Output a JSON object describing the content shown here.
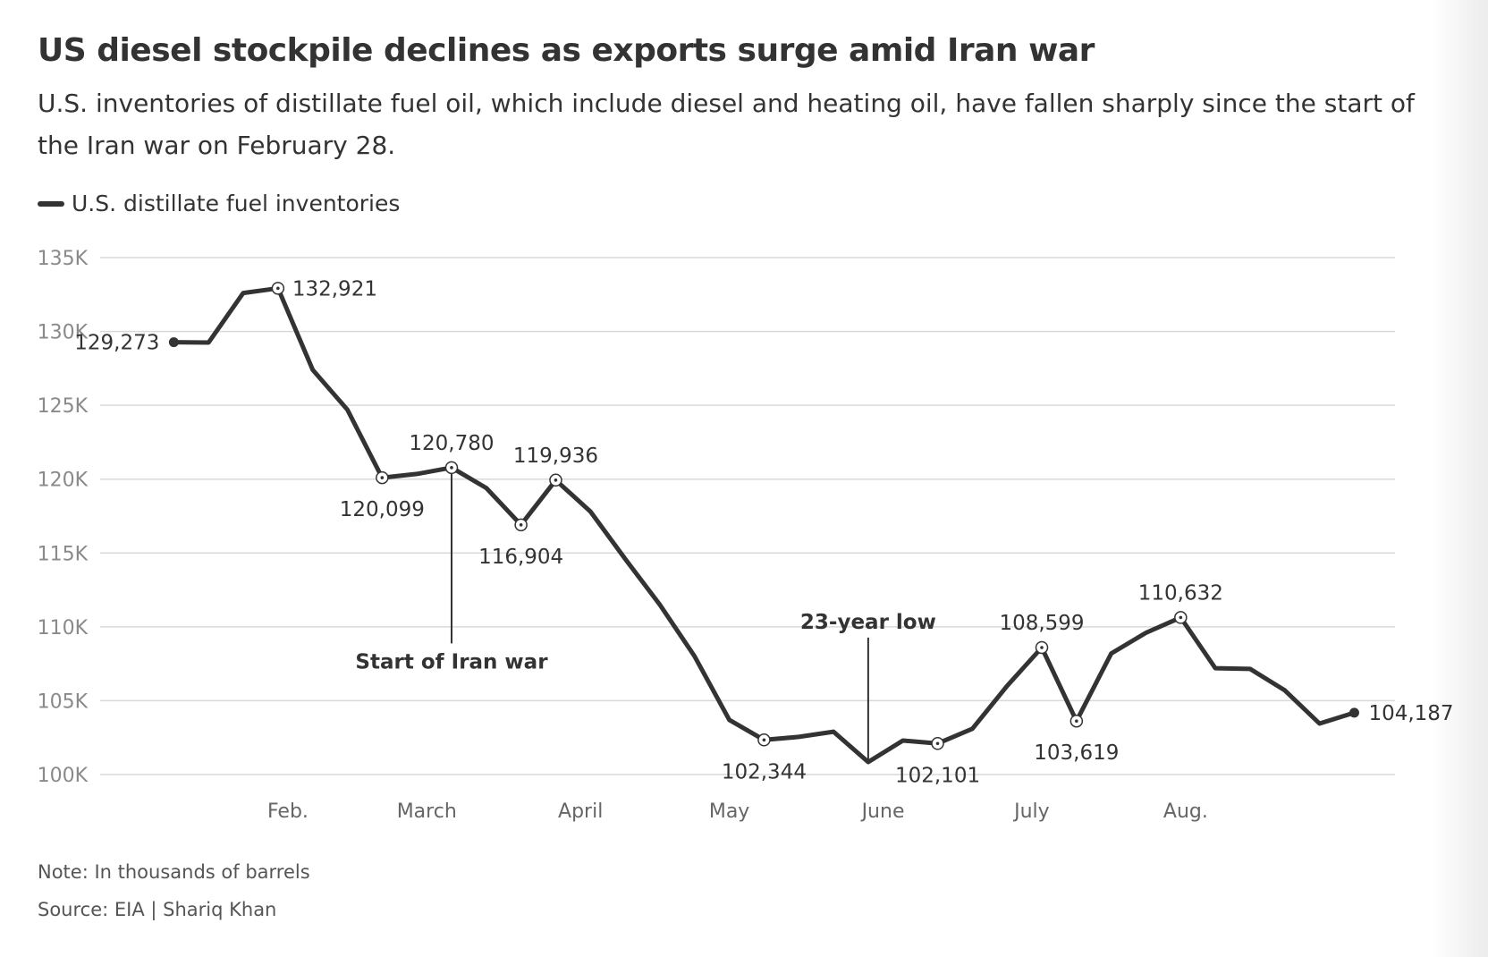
{
  "title": "US diesel stockpile declines as exports surge amid Iran war",
  "subtitle": "U.S. inventories of distillate fuel oil, which include diesel and heating oil, have fallen sharply since the start of the Iran war on February 28.",
  "note": "Note: In thousands of barrels",
  "source": "Source: EIA | Shariq Khan",
  "colors": {
    "line": "#333333",
    "grid": "#d9d9d9",
    "tick": "#8a8a8a",
    "text": "#333333"
  },
  "chart_data": {
    "type": "line",
    "legend_position": "top-left",
    "grid": true,
    "ylim": [
      100000,
      135000
    ],
    "y_ticks": [
      {
        "value": 135000,
        "label": "135K"
      },
      {
        "value": 130000,
        "label": "130K"
      },
      {
        "value": 125000,
        "label": "125K"
      },
      {
        "value": 120000,
        "label": "120K"
      },
      {
        "value": 115000,
        "label": "115K"
      },
      {
        "value": 110000,
        "label": "110K"
      },
      {
        "value": 105000,
        "label": "105K"
      },
      {
        "value": 100000,
        "label": "100K"
      }
    ],
    "xlim": [
      "2026-01-01",
      "2026-09-05"
    ],
    "x_ticks": [
      {
        "date": "2026-02-01",
        "label": "Feb."
      },
      {
        "date": "2026-03-01",
        "label": "March"
      },
      {
        "date": "2026-04-01",
        "label": "April"
      },
      {
        "date": "2026-05-01",
        "label": "May"
      },
      {
        "date": "2026-06-01",
        "label": "June"
      },
      {
        "date": "2026-07-01",
        "label": "July"
      },
      {
        "date": "2026-08-01",
        "label": "Aug."
      }
    ],
    "series": [
      {
        "name": "U.S. distillate fuel inventories",
        "points": [
          {
            "x": "2026-01-09",
            "y": 129273,
            "label": "129,273",
            "marker": "filled",
            "label_side": "left"
          },
          {
            "x": "2026-01-16",
            "y": 129250
          },
          {
            "x": "2026-01-23",
            "y": 132600
          },
          {
            "x": "2026-01-30",
            "y": 132921,
            "label": "132,921",
            "marker": "open",
            "label_side": "right"
          },
          {
            "x": "2026-02-06",
            "y": 127400
          },
          {
            "x": "2026-02-13",
            "y": 124700
          },
          {
            "x": "2026-02-20",
            "y": 120099,
            "label": "120,099",
            "marker": "open",
            "label_side": "below"
          },
          {
            "x": "2026-02-27",
            "y": 120350
          },
          {
            "x": "2026-03-06",
            "y": 120780,
            "label": "120,780",
            "marker": "open",
            "label_side": "above"
          },
          {
            "x": "2026-03-13",
            "y": 119400
          },
          {
            "x": "2026-03-20",
            "y": 116904,
            "label": "116,904",
            "marker": "open",
            "label_side": "below"
          },
          {
            "x": "2026-03-27",
            "y": 119936,
            "label": "119,936",
            "marker": "open",
            "label_side": "above"
          },
          {
            "x": "2026-04-03",
            "y": 117800
          },
          {
            "x": "2026-04-10",
            "y": 114600
          },
          {
            "x": "2026-04-17",
            "y": 111500
          },
          {
            "x": "2026-04-24",
            "y": 108000
          },
          {
            "x": "2026-05-01",
            "y": 103700
          },
          {
            "x": "2026-05-08",
            "y": 102344,
            "label": "102,344",
            "marker": "open",
            "label_side": "below"
          },
          {
            "x": "2026-05-15",
            "y": 102550
          },
          {
            "x": "2026-05-22",
            "y": 102900
          },
          {
            "x": "2026-05-29",
            "y": 100850
          },
          {
            "x": "2026-06-05",
            "y": 102300
          },
          {
            "x": "2026-06-12",
            "y": 102101,
            "label": "102,101",
            "marker": "open",
            "label_side": "below"
          },
          {
            "x": "2026-06-19",
            "y": 103100
          },
          {
            "x": "2026-06-26",
            "y": 106000
          },
          {
            "x": "2026-07-03",
            "y": 108599,
            "label": "108,599",
            "marker": "open",
            "label_side": "above"
          },
          {
            "x": "2026-07-10",
            "y": 103619,
            "label": "103,619",
            "marker": "open",
            "label_side": "below"
          },
          {
            "x": "2026-07-17",
            "y": 108200
          },
          {
            "x": "2026-07-24",
            "y": 109600
          },
          {
            "x": "2026-07-31",
            "y": 110632,
            "label": "110,632",
            "marker": "open",
            "label_side": "above"
          },
          {
            "x": "2026-08-07",
            "y": 107200
          },
          {
            "x": "2026-08-14",
            "y": 107150
          },
          {
            "x": "2026-08-21",
            "y": 105700
          },
          {
            "x": "2026-08-28",
            "y": 103450
          },
          {
            "x": "2026-09-04",
            "y": 104187,
            "label": "104,187",
            "marker": "filled",
            "label_side": "right"
          }
        ]
      }
    ],
    "annotations": [
      {
        "text": "Start of Iran war",
        "x": "2026-03-06",
        "y": 120780,
        "label_y": 109000,
        "placement": "below"
      },
      {
        "text": "23-year low",
        "x": "2026-05-29",
        "y": 100850,
        "label_y": 110000,
        "placement": "above"
      }
    ]
  }
}
